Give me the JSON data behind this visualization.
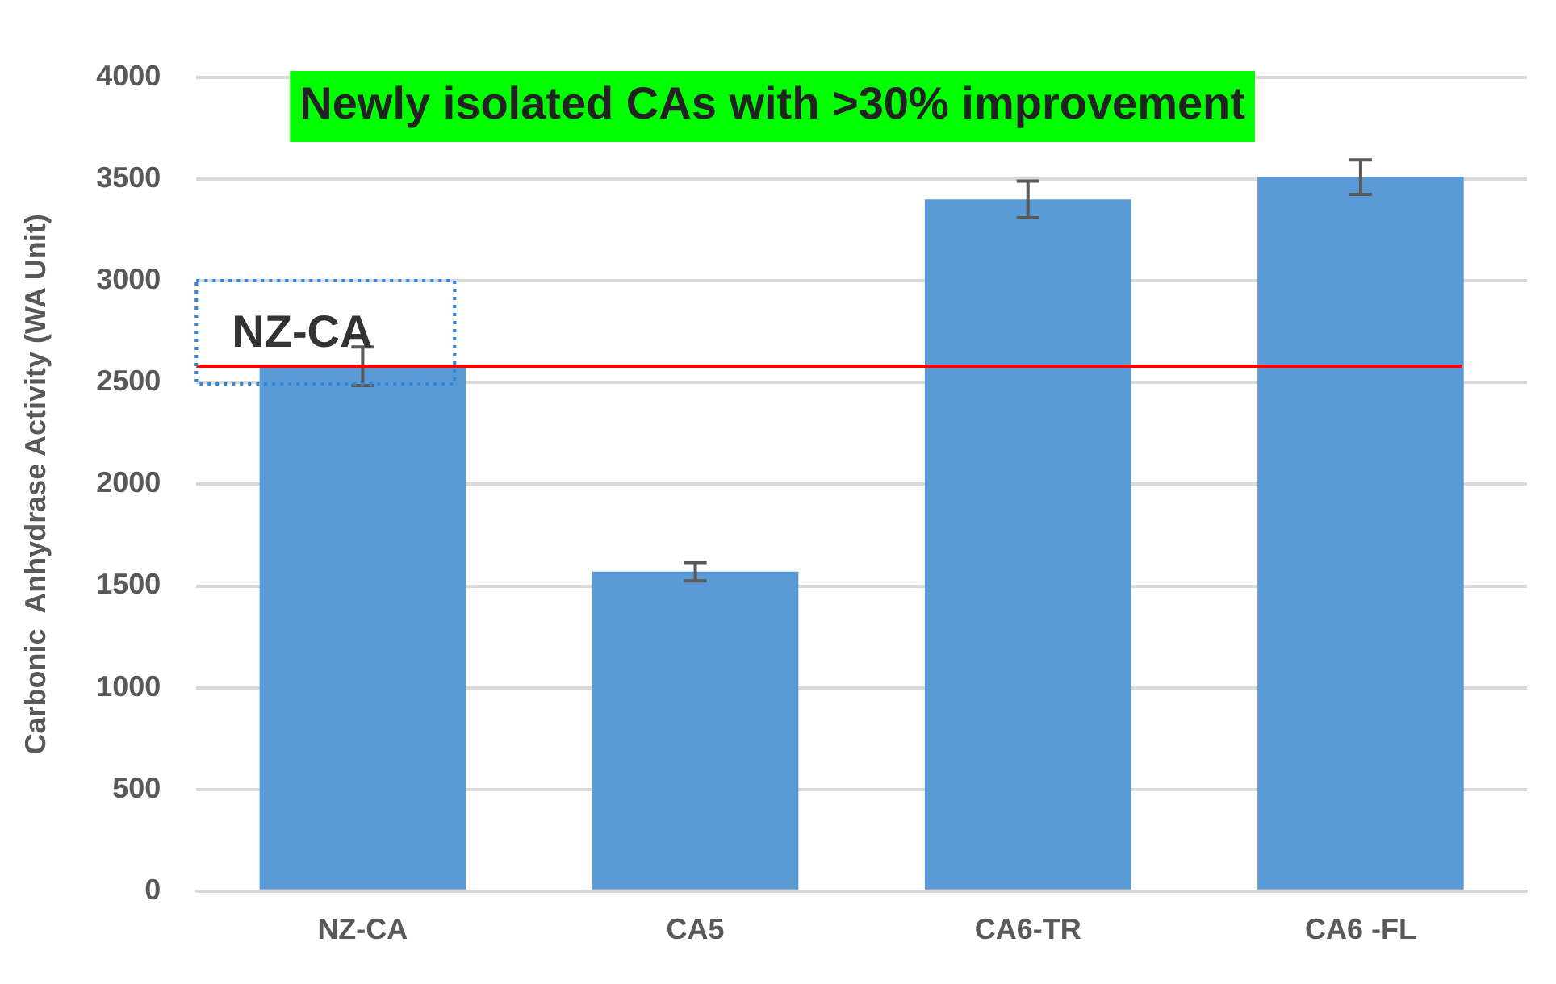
{
  "chart_data": {
    "type": "bar",
    "ylabel": "Carbonic  Anhydrase Activity (WA Unit)",
    "categories": [
      "NZ-CA",
      "CA5",
      "CA6-TR",
      "CA6 -FL"
    ],
    "values": [
      2580,
      1570,
      3400,
      3510
    ],
    "color": "#5b9bd5",
    "errors": [
      95,
      45,
      90,
      85
    ],
    "ylim": [
      0,
      4000
    ],
    "yticks": [
      0,
      500,
      1000,
      1500,
      2000,
      2500,
      3000,
      3500,
      4000
    ],
    "grid": "y",
    "legend": false,
    "ref_lines": [
      {
        "axis": "y",
        "value": 2580,
        "label": "NZ-CA",
        "color": "#ff0000"
      }
    ],
    "annotations": [
      "Newly isolated CAs with >30% improvement"
    ]
  }
}
